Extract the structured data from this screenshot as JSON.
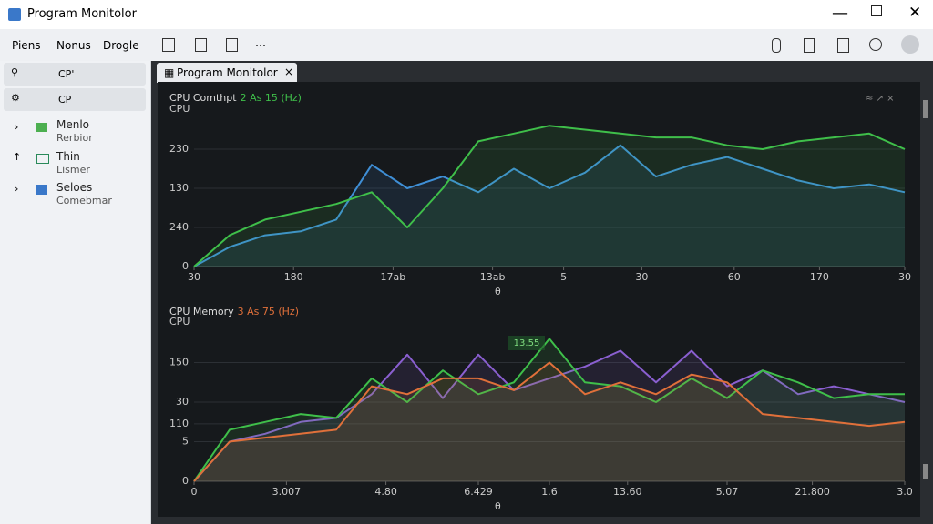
{
  "window": {
    "title": "Program Monitolor"
  },
  "menu": [
    "Piens",
    "Nonus",
    "Drogle"
  ],
  "sidebar": {
    "items": [
      {
        "label": "CP'"
      },
      {
        "label": "CP"
      }
    ],
    "tree": [
      {
        "label": "Menlo",
        "sub": "Rerbior"
      },
      {
        "label": "Thin",
        "sub": "Lismer"
      },
      {
        "label": "Seloes",
        "sub": "Comebmar"
      }
    ]
  },
  "tab": {
    "label": "Program Monitolor"
  },
  "chart_data": [
    {
      "type": "line",
      "title": "CPU Comthpt",
      "subtitle": "2 As 15 (Hz)",
      "y_label": "CPU",
      "x_label": "θ",
      "xlim": [
        0,
        100
      ],
      "ylim": [
        0,
        4
      ],
      "xticks": [
        {
          "value": 0,
          "label": "30"
        },
        {
          "value": 14,
          "label": "180"
        },
        {
          "value": 28,
          "label": "17ab"
        },
        {
          "value": 42,
          "label": "13ab"
        },
        {
          "value": 52,
          "label": "5"
        },
        {
          "value": 63,
          "label": "30"
        },
        {
          "value": 76,
          "label": "60"
        },
        {
          "value": 88,
          "label": "170"
        },
        {
          "value": 100,
          "label": "30"
        }
      ],
      "yticks": [
        0,
        {
          "value": 1,
          "label": "240"
        },
        {
          "value": 2,
          "label": "130"
        },
        {
          "value": 3,
          "label": "230"
        }
      ],
      "x": [
        0,
        5,
        10,
        15,
        20,
        25,
        30,
        35,
        40,
        45,
        50,
        55,
        60,
        65,
        70,
        75,
        80,
        85,
        90,
        95,
        100
      ],
      "series": [
        {
          "name": "blue",
          "color": "#3f8fd6",
          "values": [
            0,
            0.5,
            0.8,
            0.9,
            1.2,
            2.6,
            2.0,
            2.3,
            1.9,
            2.5,
            2.0,
            2.4,
            3.1,
            2.3,
            2.6,
            2.8,
            2.5,
            2.2,
            2.0,
            2.1,
            1.9
          ]
        },
        {
          "name": "green",
          "color": "#3fbf4a",
          "values": [
            0,
            0.8,
            1.2,
            1.4,
            1.6,
            1.9,
            1.0,
            2.0,
            3.2,
            3.4,
            3.6,
            3.5,
            3.4,
            3.3,
            3.3,
            3.1,
            3.0,
            3.2,
            3.3,
            3.4,
            3.0
          ]
        }
      ]
    },
    {
      "type": "line",
      "title": "CPU Memory",
      "subtitle": "3 As 75 (Hz)",
      "y_label": "CPU",
      "x_label": "θ",
      "annotation": "13.55",
      "xlim": [
        0,
        100
      ],
      "ylim": [
        0,
        4
      ],
      "xticks": [
        0,
        {
          "value": 13,
          "label": "3.007"
        },
        {
          "value": 27,
          "label": "4.80"
        },
        {
          "value": 40,
          "label": "6.429"
        },
        {
          "value": 50,
          "label": "1.6"
        },
        {
          "value": 61,
          "label": "13.60"
        },
        {
          "value": 75,
          "label": "5.07"
        },
        {
          "value": 87,
          "label": "21.800"
        },
        {
          "value": 100,
          "label": "3.0"
        }
      ],
      "yticks": [
        0,
        {
          "value": 1,
          "label": "5"
        },
        {
          "value": 1.45,
          "label": "110"
        },
        {
          "value": 2,
          "label": "30"
        },
        {
          "value": 3,
          "label": "150"
        }
      ],
      "x": [
        0,
        5,
        10,
        15,
        20,
        25,
        30,
        35,
        40,
        45,
        50,
        55,
        60,
        65,
        70,
        75,
        80,
        85,
        90,
        95,
        100
      ],
      "series": [
        {
          "name": "purple",
          "color": "#8a5fd0",
          "values": [
            0,
            1.0,
            1.2,
            1.5,
            1.6,
            2.2,
            3.2,
            2.1,
            3.2,
            2.3,
            2.6,
            2.9,
            3.3,
            2.5,
            3.3,
            2.4,
            2.8,
            2.2,
            2.4,
            2.2,
            2.0
          ]
        },
        {
          "name": "green",
          "color": "#3fbf4a",
          "values": [
            0,
            1.3,
            1.5,
            1.7,
            1.6,
            2.6,
            2.0,
            2.8,
            2.2,
            2.5,
            3.6,
            2.5,
            2.4,
            2.0,
            2.6,
            2.1,
            2.8,
            2.5,
            2.1,
            2.2,
            2.2
          ]
        },
        {
          "name": "orange",
          "color": "#e0703a",
          "values": [
            0,
            1.0,
            1.1,
            1.2,
            1.3,
            2.4,
            2.2,
            2.6,
            2.6,
            2.3,
            3.0,
            2.2,
            2.5,
            2.2,
            2.7,
            2.5,
            1.7,
            1.6,
            1.5,
            1.4,
            1.5
          ]
        }
      ]
    }
  ]
}
